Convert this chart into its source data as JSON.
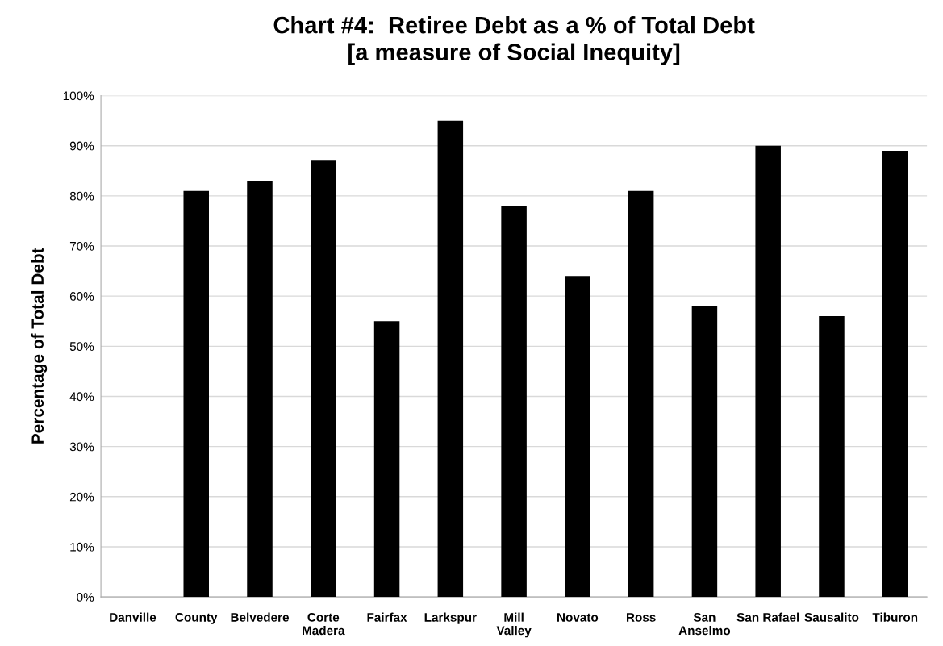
{
  "chart_data": {
    "type": "bar",
    "title": "Chart #4:  Retiree Debt as a % of Total Debt\n[a measure of Social Inequity]",
    "ylabel": "Percentage of Total Debt",
    "categories": [
      "Danville",
      "County",
      "Belvedere",
      "Corte Madera",
      "Fairfax",
      "Larkspur",
      "Mill Valley",
      "Novato",
      "Ross",
      "San Anselmo",
      "San Rafael",
      "Sausalito",
      "Tiburon"
    ],
    "values": [
      null,
      81,
      83,
      87,
      55,
      95,
      78,
      64,
      81,
      58,
      90,
      56,
      89
    ],
    "color": "#000000",
    "ylim": [
      0,
      100
    ],
    "yticks": [
      {
        "value": 0,
        "label": "0%"
      },
      {
        "value": 10,
        "label": "10%"
      },
      {
        "value": 20,
        "label": "20%"
      },
      {
        "value": 30,
        "label": "30%"
      },
      {
        "value": 40,
        "label": "40%"
      },
      {
        "value": 50,
        "label": "50%"
      },
      {
        "value": 60,
        "label": "60%"
      },
      {
        "value": 70,
        "label": "70%"
      },
      {
        "value": 80,
        "label": "80%"
      },
      {
        "value": 90,
        "label": "90%"
      },
      {
        "value": 100,
        "label": "100%"
      }
    ],
    "grid": "y"
  }
}
